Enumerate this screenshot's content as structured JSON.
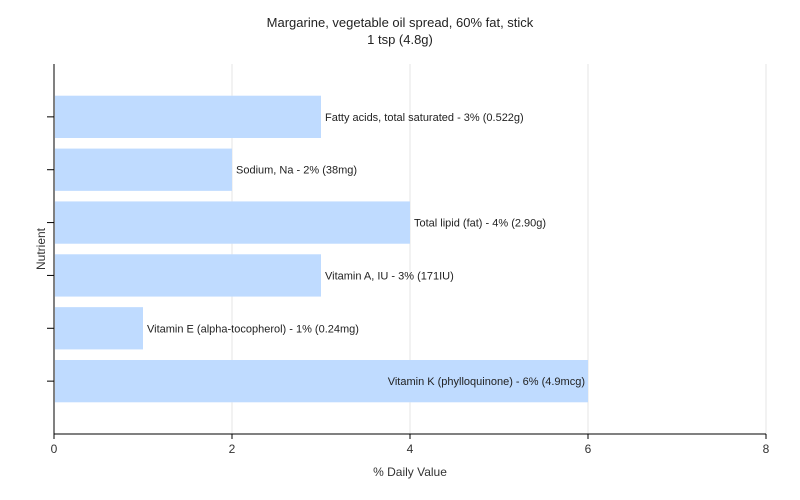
{
  "chart_data": {
    "type": "bar",
    "orientation": "horizontal",
    "title": "Margarine, vegetable oil spread, 60% fat, stick",
    "subtitle": "1 tsp (4.8g)",
    "xlabel": "% Daily Value",
    "ylabel": "Nutrient",
    "xlim": [
      0,
      8
    ],
    "xticks": [
      0,
      2,
      4,
      6,
      8
    ],
    "grid": true,
    "bar_color": "#bfdbff",
    "categories": [
      "Fatty acids, total saturated",
      "Sodium, Na",
      "Total lipid (fat)",
      "Vitamin A, IU",
      "Vitamin E (alpha-tocopherol)",
      "Vitamin K (phylloquinone)"
    ],
    "values": [
      3,
      2,
      4,
      3,
      1,
      6
    ],
    "labels": [
      "Fatty acids, total saturated - 3% (0.522g)",
      "Sodium, Na - 2% (38mg)",
      "Total lipid (fat) - 4% (2.90g)",
      "Vitamin A, IU - 3% (171IU)",
      "Vitamin E (alpha-tocopherol) - 1% (0.24mg)",
      "Vitamin K (phylloquinone) - 6% (4.9mcg)"
    ]
  }
}
